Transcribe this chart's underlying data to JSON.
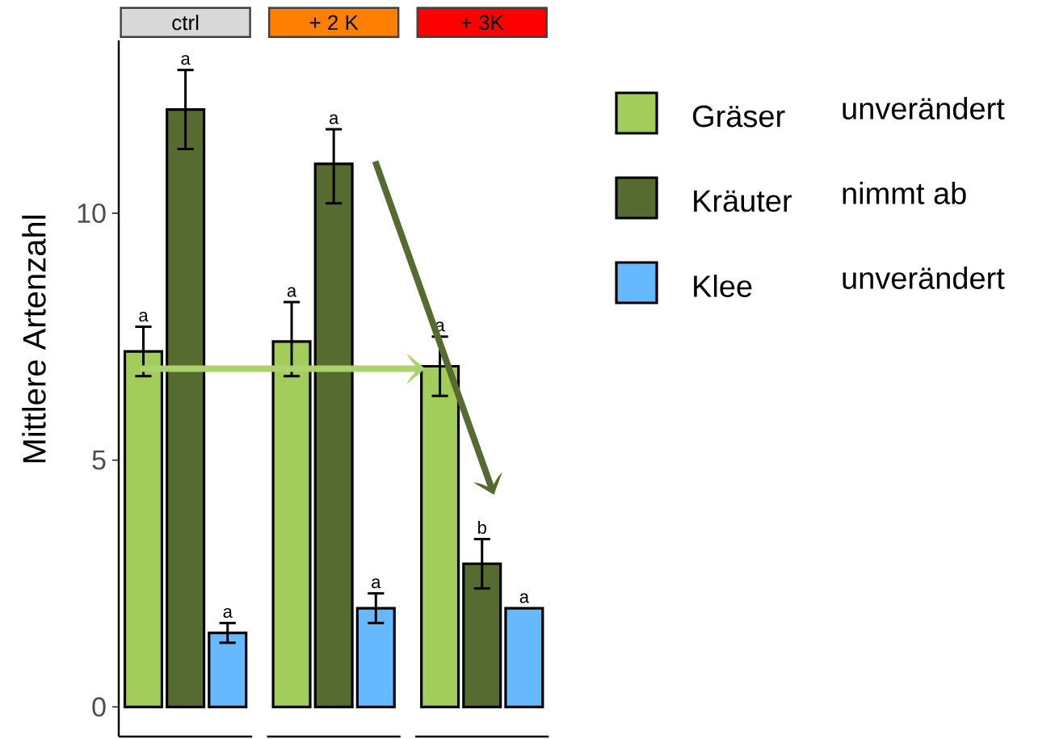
{
  "chart_data": {
    "type": "bar",
    "categories": [
      "ctrl",
      "+ 2 K",
      "+ 3K"
    ],
    "ylabel": "Mittlere Artenzahl",
    "ylim": [
      -0.6,
      13.5
    ],
    "yticks": [
      0,
      5,
      10
    ],
    "grid": false,
    "legend": "right",
    "annotations": [
      "unverändert",
      "nimmt ab",
      "unverändert"
    ],
    "series": [
      {
        "name": "Gräser",
        "color": "#a3cd5a",
        "values": [
          7.2,
          7.4,
          6.9
        ],
        "errors": [
          [
            6.7,
            7.7
          ],
          [
            6.7,
            8.2
          ],
          [
            6.3,
            7.5
          ]
        ],
        "value_labels": [
          "a",
          "a",
          "a"
        ]
      },
      {
        "name": "Kräuter",
        "color": "#566b30",
        "values": [
          12.1,
          11.0,
          2.9
        ],
        "errors": [
          [
            11.3,
            12.9
          ],
          [
            10.2,
            11.7
          ],
          [
            2.4,
            3.4
          ]
        ],
        "value_labels": [
          "a",
          "a",
          "b"
        ]
      },
      {
        "name": "Klee",
        "color": "#66b8ff",
        "values": [
          1.5,
          2.0,
          2.0
        ],
        "errors": [
          [
            1.3,
            1.7
          ],
          [
            1.7,
            2.3
          ],
          null
        ],
        "value_labels": [
          "a",
          "a",
          "a"
        ]
      }
    ]
  }
}
